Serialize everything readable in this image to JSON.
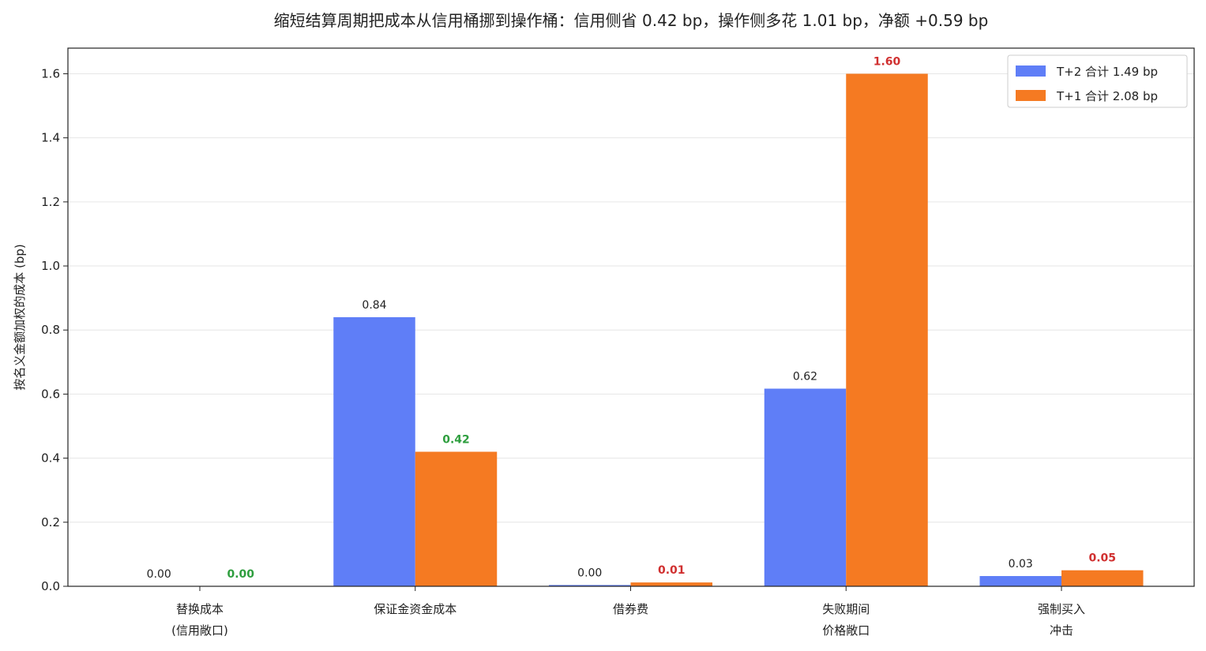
{
  "colors": {
    "t2": "#5f7ef7",
    "t1": "#f57a22",
    "label_default": "#222222",
    "label_green": "#2e9e3e",
    "label_red": "#d03030",
    "grid": "#e6e6e6",
    "axis": "#222222"
  },
  "chart_data": {
    "type": "bar",
    "title": "缩短结算周期把成本从信用桶挪到操作桶：信用侧省 0.42 bp，操作侧多花 1.01 bp，净额 +0.59 bp",
    "xlabel": "",
    "ylabel": "按名义金额加权的成本 (bp)",
    "ylim": [
      0,
      1.68
    ],
    "yticks": [
      "0.0",
      "0.2",
      "0.4",
      "0.6",
      "0.8",
      "1.0",
      "1.2",
      "1.4",
      "1.6"
    ],
    "grid": true,
    "legend_position": "top-right",
    "categories": [
      [
        "替换成本",
        "(信用敞口)"
      ],
      [
        "保证金资金成本"
      ],
      [
        "借券费"
      ],
      [
        "失败期间",
        "价格敞口"
      ],
      [
        "强制买入",
        "冲击"
      ]
    ],
    "series": [
      {
        "name": "T+2  合计 1.49 bp",
        "color_key": "t2",
        "values": [
          0.0,
          0.84,
          0.004,
          0.617,
          0.032
        ],
        "labels": [
          "0.00",
          "0.84",
          "0.00",
          "0.62",
          "0.03"
        ],
        "label_colors": [
          "label_default",
          "label_default",
          "label_default",
          "label_default",
          "label_default"
        ],
        "label_bold": false
      },
      {
        "name": "T+1  合计 2.08 bp",
        "color_key": "t1",
        "values": [
          0.0,
          0.42,
          0.012,
          1.6,
          0.05
        ],
        "labels": [
          "0.00",
          "0.42",
          "0.01",
          "1.60",
          "0.05"
        ],
        "label_colors": [
          "label_green",
          "label_green",
          "label_red",
          "label_red",
          "label_red"
        ],
        "label_bold": true
      }
    ]
  }
}
